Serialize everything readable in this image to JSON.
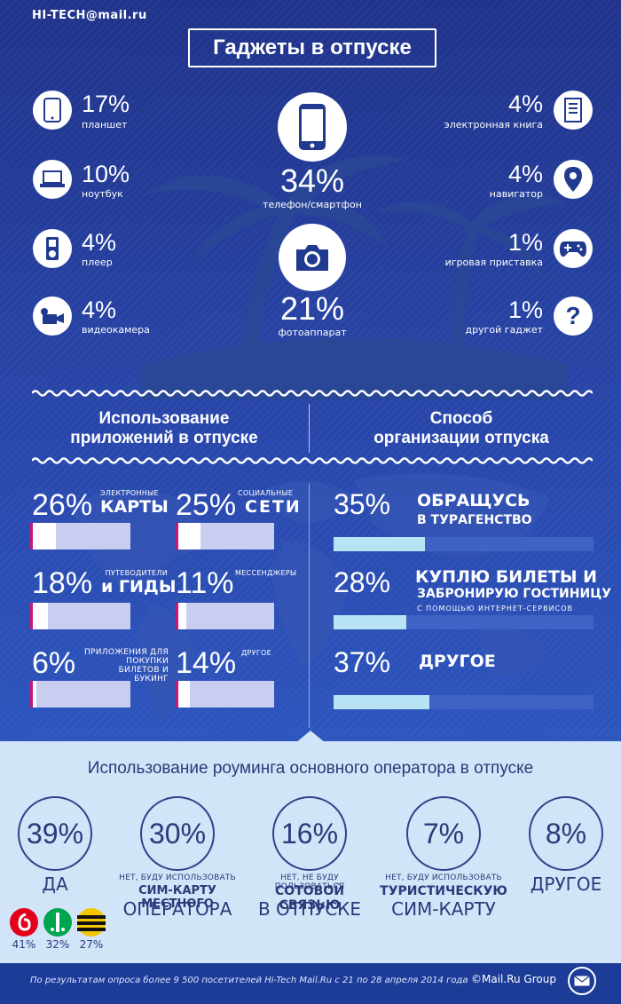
{
  "brand": "HI-TECH@mail.ru",
  "title": "Гаджеты в отпуске",
  "gadgets": {
    "tablet": {
      "pct": "17%",
      "label": "планшет"
    },
    "laptop": {
      "pct": "10%",
      "label": "ноутбук"
    },
    "player": {
      "pct": "4%",
      "label": "плеер"
    },
    "camcorder": {
      "pct": "4%",
      "label": "видеокамера"
    },
    "phone": {
      "pct": "34%",
      "label": "телефон/смартфон"
    },
    "camera": {
      "pct": "21%",
      "label": "фотоаппарат"
    },
    "ebook": {
      "pct": "4%",
      "label": "электронная книга"
    },
    "navigator": {
      "pct": "4%",
      "label": "навигатор"
    },
    "console": {
      "pct": "1%",
      "label": "игровая приставка"
    },
    "other": {
      "pct": "1%",
      "label": "другой гаджет"
    }
  },
  "apps_section": {
    "title_line1": "Использование",
    "title_line2": "приложений в отпуске"
  },
  "org_section": {
    "title_line1": "Способ",
    "title_line2": "организации отпуска"
  },
  "apps": [
    {
      "pct": "26%",
      "small": "электронные",
      "big": "КАРТЫ",
      "value": 26
    },
    {
      "pct": "25%",
      "small": "социальные",
      "big": "СЕТИ",
      "value": 25
    },
    {
      "pct": "18%",
      "small": "путеводители",
      "big": "и ГИДЫ",
      "value": 18
    },
    {
      "pct": "11%",
      "small": "мессенджеры",
      "big": "",
      "value": 11
    },
    {
      "pct": "6%",
      "small": "приложения для покупки билетов и букинг",
      "big": "",
      "value": 6
    },
    {
      "pct": "14%",
      "small": "другое",
      "big": "",
      "value": 14
    }
  ],
  "org": [
    {
      "pct": "35%",
      "line1": "ОБРАЩУСЬ",
      "line2": "В ТУРАГЕНСТВО",
      "line3": "",
      "value": 35
    },
    {
      "pct": "28%",
      "line1": "КУПЛЮ БИЛЕТЫ И",
      "line2": "ЗАБРОНИРУЮ ГОСТИНИЦУ",
      "line3": "С ПОМОЩЬЮ ИНТЕРНЕТ-СЕРВИСОВ",
      "value": 28
    },
    {
      "pct": "37%",
      "line1": "ДРУГОЕ",
      "line2": "",
      "line3": "",
      "value": 37
    }
  ],
  "roaming": {
    "title": "Использование роуминга основного оператора в отпуске",
    "items": [
      {
        "pct": "39%",
        "small": "",
        "big": "ДА"
      },
      {
        "pct": "30%",
        "small": "нет, буду использовать",
        "big_line1": "СИМ-КАРТУ МЕСТНОГО",
        "big_line2": "ОПЕРАТОРА"
      },
      {
        "pct": "16%",
        "small": "нет, не буду пользоваться",
        "big_line1": "СОТОВОЙ СВЯЗЬЮ",
        "big_line2": "В ОТПУСКЕ"
      },
      {
        "pct": "7%",
        "small": "нет, буду использовать",
        "big_line1": "ТУРИСТИЧЕСКУЮ",
        "big_line2": "СИМ-КАРТУ"
      },
      {
        "pct": "8%",
        "small": "",
        "big": "ДРУГОЕ"
      }
    ],
    "operators": [
      {
        "pct": "41%",
        "color": "#e4001b"
      },
      {
        "pct": "32%",
        "color": "#00a54f"
      },
      {
        "pct": "27%",
        "color": "#f5c400"
      }
    ]
  },
  "footer": {
    "note": "По результатам опроса более 9 500 посетителей Hi-Tech Mail.Ru с 21 по 28 апреля 2014 года",
    "copyright": "©Mail.Ru Group"
  }
}
